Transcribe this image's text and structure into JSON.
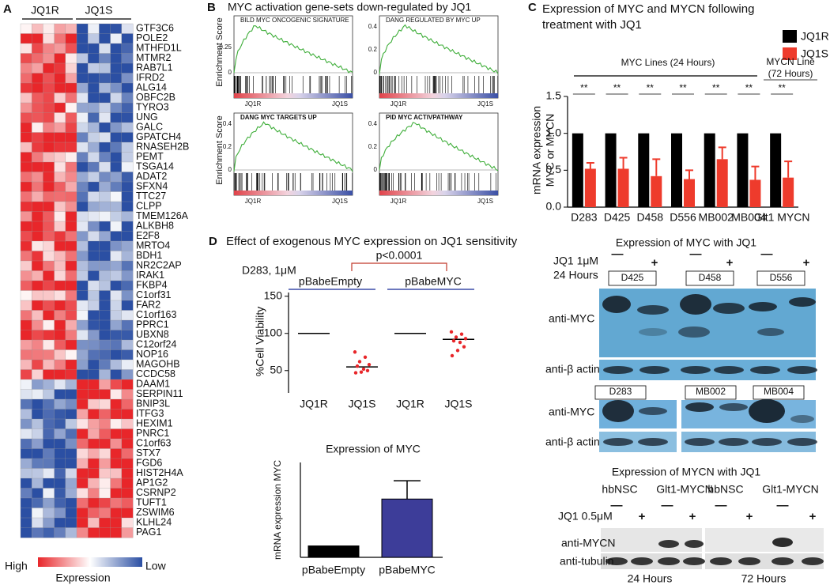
{
  "panel_labels": [
    "A",
    "B",
    "C",
    "D"
  ],
  "heatmap": {
    "groups": [
      "JQ1R",
      "JQ1S"
    ],
    "genes": [
      "GTF3C6",
      "POLE2",
      "MTHFD1L",
      "MTMR2",
      "RAB7L1",
      "IFRD2",
      "ALG14",
      "OBFC2B",
      "TYRO3",
      "UNG",
      "GALC",
      "GPATCH4",
      "RNASEH2B",
      "PEMT",
      "TSGA14",
      "ADAT2",
      "SFXN4",
      "TTC27",
      "CLPP",
      "TMEM126A",
      "ALKBH8",
      "E2F8",
      "MRTO4",
      "BDH1",
      "NR2C2AP",
      "IRAK1",
      "FKBP4",
      "C1orf31",
      "FAR2",
      "C1orf163",
      "PPRC1",
      "UBXN8",
      "C12orf24",
      "NOP16",
      "MAGOHB",
      "CCDC58",
      "DAAM1",
      "SERPIN11",
      "BNIP3L",
      "ITFG3",
      "HEXIM1",
      "PNRC1",
      "C1orf63",
      "STX7",
      "FGD6",
      "HIST2H4A",
      "AP1G2",
      "CSRNP2",
      "TUFT1",
      "ZSWIM6",
      "KLHL24",
      "PAG1"
    ],
    "legend_high": "High",
    "legend_low": "Low",
    "legend_title": "Expression"
  },
  "gsea": {
    "title": "MYC activation gene-sets down-regulated by JQ1",
    "y_label": "Enrichment Score",
    "plots": [
      {
        "title": "BILD MYC ONCOGENIC SIGNATURE",
        "yticks": [
          "0.25",
          "0"
        ],
        "left": "JQ1R",
        "right": "JQ1S"
      },
      {
        "title": "DANG REGULATED BY MYC UP",
        "yticks": [
          "0.4",
          "0.2",
          "0"
        ],
        "left": "JQ1R",
        "right": "JQ1S"
      },
      {
        "title": "DANG MYC TARGETS UP",
        "yticks": [
          "0.4",
          "0.2",
          "0"
        ],
        "left": "JQ1R",
        "right": "JQ1S"
      },
      {
        "title": "PID MYC ACTIVPATHWAY",
        "yticks": [
          "0.4",
          "0.2",
          "0"
        ],
        "left": "JQ1R",
        "right": "JQ1S"
      }
    ]
  },
  "chart_data": [
    {
      "type": "bar",
      "title": [
        "Expression of MYC and MYCN following",
        "treatment with JQ1"
      ],
      "y_label": [
        "mRNA expression",
        "MYC or MYCN"
      ],
      "categories": [
        "D283",
        "D425",
        "D458",
        "D556",
        "MB002",
        "MB004",
        "Glt1 MYCN"
      ],
      "series": [
        {
          "name": "JQ1R",
          "color": "#000000",
          "values": [
            1,
            1,
            1,
            1,
            1,
            1,
            1
          ]
        },
        {
          "name": "JQ1S",
          "color": "#ee3b2c",
          "values": [
            0.52,
            0.52,
            0.42,
            0.38,
            0.65,
            0.37,
            0.4
          ],
          "errors": [
            0.08,
            0.15,
            0.23,
            0.12,
            0.16,
            0.18,
            0.22
          ]
        }
      ],
      "ylim": [
        0,
        1.5
      ],
      "yticks": [
        {
          "value": 0,
          "label": "0.0"
        },
        0.5,
        {
          "value": 1,
          "label": "1.0"
        },
        1.5
      ],
      "significance": [
        "**",
        "**",
        "**",
        "**",
        "**",
        "**",
        "**"
      ],
      "annotations": [
        "MYC Lines (24 Hours)",
        "MYCN Line",
        "(72 Hours)"
      ]
    },
    {
      "type": "dot",
      "title": "Effect of exogenous MYC expression on JQ1 sensitivity",
      "condition": "D283, 1μM",
      "annotation": "p<0.0001",
      "groups": [
        "pBabeEmpty",
        "pBabeMYC"
      ],
      "y_label": "%Cell Viability",
      "categories": [
        "JQ1R",
        "JQ1S",
        "JQ1R",
        "JQ1S"
      ],
      "means": [
        100,
        55,
        100,
        92
      ],
      "points": [
        [],
        [
          75,
          68,
          62,
          58,
          56,
          52,
          50,
          48,
          47
        ],
        [],
        [
          102,
          99,
          95,
          93,
          90,
          88,
          82,
          77,
          70
        ]
      ],
      "mean_color": "#000000",
      "point_color": "#e8262a",
      "ylim": [
        20,
        155
      ],
      "yticks": [
        50,
        100,
        150
      ]
    },
    {
      "type": "bar",
      "title": "Expression of MYC",
      "y_label": "mRNA expression MYC",
      "categories": [
        "pBabeEmpty",
        "pBabeMYC"
      ],
      "values": [
        1,
        5.1
      ],
      "errors": [
        0,
        1.6
      ],
      "colors": [
        "#000000",
        "#3d3d99"
      ],
      "ylim": [
        0,
        8.3
      ]
    }
  ],
  "blot_myc": {
    "title": "Expression of MYC with JQ1",
    "treatment": "JQ1 1μM",
    "time": "24 Hours",
    "signs": [
      "—",
      "+",
      "—",
      "+",
      "—",
      "+"
    ],
    "lines_top": [
      "D425",
      "D458",
      "D556"
    ],
    "lines_bottom": [
      "D283",
      "MB002",
      "MB004"
    ],
    "rows": [
      "anti-MYC",
      "anti-β actin",
      "anti-MYC",
      "anti-β actin"
    ]
  },
  "blot_mycn": {
    "title": "Expression of MYCN with JQ1",
    "lines": [
      "hbNSC",
      "Glt1-MYCN",
      "hbNSC",
      "Glt1-MYCN"
    ],
    "treatment": "JQ1 0.5μM",
    "signs": [
      "—",
      "+",
      "—",
      "+",
      "—",
      "+",
      "—",
      "+"
    ],
    "rows": [
      "anti-MYCN",
      "anti-tubulin"
    ],
    "times": [
      "24 Hours",
      "72 Hours"
    ]
  }
}
